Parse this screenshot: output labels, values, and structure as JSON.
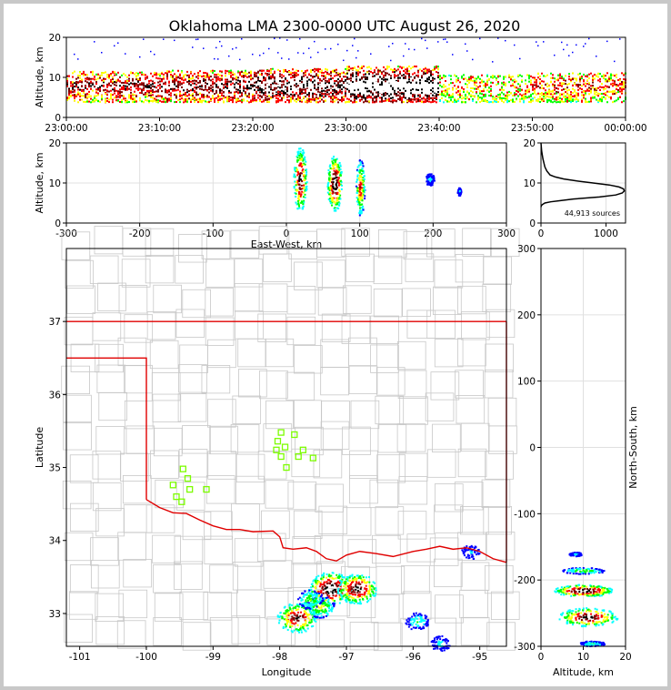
{
  "figure": {
    "title": "Oklahoma LMA 2300-0000 UTC August 26, 2020",
    "colors": {
      "axes": "#000000",
      "grid": "#e0e0e0",
      "county": "#c8c8c8",
      "state": "#e00000",
      "stations": "#7cfc00",
      "profile": "#000000"
    },
    "colormap": [
      "#0000ff",
      "#00ffff",
      "#00ff00",
      "#ffff00",
      "#ff0000",
      "#800000",
      "#000000",
      "#ffffff"
    ]
  },
  "chart_data": [
    {
      "type": "heatmap",
      "panel": "time-height",
      "xlabel": "",
      "ylabel": "Altitude, km",
      "xlim": [
        "23:00:00",
        "00:00:00"
      ],
      "ylim": [
        0,
        20
      ],
      "xticks": [
        "23:00:00",
        "23:10:00",
        "23:20:00",
        "23:30:00",
        "23:40:00",
        "23:50:00",
        "00:00:00"
      ],
      "yticks": [
        0,
        10,
        20
      ],
      "density_by_10min": [
        0.55,
        0.6,
        0.7,
        0.85,
        0.35,
        0.45
      ],
      "altitude_range_km": [
        4,
        16
      ]
    },
    {
      "type": "heatmap",
      "panel": "east-west-altitude",
      "xlabel": "East-West, km",
      "ylabel": "Altitude, km",
      "xlim": [
        -300,
        300
      ],
      "ylim": [
        0,
        20
      ],
      "xticks": [
        -300,
        -200,
        -100,
        0,
        100,
        200,
        300
      ],
      "yticks": [
        0,
        10,
        20
      ],
      "cells": [
        {
          "x": 18,
          "z": 11,
          "w": 18,
          "h": 16,
          "v": 0.9
        },
        {
          "x": 65,
          "z": 10,
          "w": 20,
          "h": 14,
          "v": 1.0
        },
        {
          "x": 100,
          "z": 9,
          "w": 12,
          "h": 14,
          "v": 0.7
        },
        {
          "x": 195,
          "z": 11,
          "w": 12,
          "h": 3,
          "v": 0.2
        },
        {
          "x": 235,
          "z": 8,
          "w": 5,
          "h": 2,
          "v": 0.2
        }
      ]
    },
    {
      "type": "line",
      "panel": "altitude-histogram",
      "xlim": [
        0,
        1300
      ],
      "ylim": [
        0,
        20
      ],
      "xticks": [
        0,
        1000
      ],
      "yticks": [
        0,
        10,
        20
      ],
      "annotation": "44,913 sources",
      "x": [
        0,
        5,
        20,
        60,
        150,
        300,
        500,
        900,
        1150,
        1250,
        1280,
        1270,
        1200,
        1050,
        800,
        550,
        350,
        220,
        140,
        90,
        60,
        30,
        10,
        0
      ],
      "y": [
        4,
        4.3,
        4.6,
        5,
        5.3,
        5.6,
        6,
        6.5,
        7,
        7.5,
        8,
        8.5,
        9,
        9.5,
        10,
        10.5,
        11,
        11.5,
        12,
        13,
        14,
        16,
        18,
        20
      ]
    },
    {
      "type": "heatmap",
      "panel": "plan-view-map",
      "xlabel": "Longitude",
      "ylabel": "Latitude",
      "xlim": [
        -101.2,
        -94.6
      ],
      "ylim": [
        32.55,
        38
      ],
      "xticks": [
        -101,
        -100,
        -99,
        -98,
        -97,
        -96,
        -95
      ],
      "yticks": [
        33,
        34,
        35,
        36,
        37
      ],
      "storms": [
        {
          "lon": -97.25,
          "lat": 33.35,
          "v": 1.0
        },
        {
          "lon": -96.85,
          "lat": 33.35,
          "v": 0.9
        },
        {
          "lon": -97.75,
          "lat": 32.95,
          "v": 0.85
        },
        {
          "lon": -97.4,
          "lat": 33.1,
          "v": 0.5
        },
        {
          "lon": -95.95,
          "lat": 32.9,
          "v": 0.3
        },
        {
          "lon": -95.6,
          "lat": 32.6,
          "v": 0.2
        },
        {
          "lon": -95.15,
          "lat": 33.85,
          "v": 0.15
        },
        {
          "lon": -97.55,
          "lat": 33.2,
          "v": 0.4
        }
      ],
      "stations": [
        {
          "lon": -97.98,
          "lat": 35.48
        },
        {
          "lon": -97.78,
          "lat": 35.45
        },
        {
          "lon": -98.03,
          "lat": 35.36
        },
        {
          "lon": -97.92,
          "lat": 35.28
        },
        {
          "lon": -98.05,
          "lat": 35.24
        },
        {
          "lon": -97.65,
          "lat": 35.24
        },
        {
          "lon": -97.98,
          "lat": 35.15
        },
        {
          "lon": -97.72,
          "lat": 35.15
        },
        {
          "lon": -97.5,
          "lat": 35.13
        },
        {
          "lon": -97.9,
          "lat": 35.0
        },
        {
          "lon": -99.45,
          "lat": 34.98
        },
        {
          "lon": -99.38,
          "lat": 34.85
        },
        {
          "lon": -99.6,
          "lat": 34.76
        },
        {
          "lon": -99.35,
          "lat": 34.7
        },
        {
          "lon": -99.1,
          "lat": 34.7
        },
        {
          "lon": -99.55,
          "lat": 34.6
        },
        {
          "lon": -99.47,
          "lat": 34.53
        }
      ],
      "border": {
        "kansas": [
          [
            -101.2,
            37
          ],
          [
            -94.6,
            37
          ]
        ],
        "panhandle": [
          [
            -101.2,
            36.5
          ],
          [
            -100,
            36.5
          ],
          [
            -100,
            34.56
          ]
        ],
        "red_river": [
          [
            -100,
            34.56
          ],
          [
            -99.8,
            34.45
          ],
          [
            -99.6,
            34.38
          ],
          [
            -99.4,
            34.37
          ],
          [
            -99.2,
            34.28
          ],
          [
            -99.0,
            34.2
          ],
          [
            -98.8,
            34.15
          ],
          [
            -98.6,
            34.15
          ],
          [
            -98.4,
            34.12
          ],
          [
            -98.1,
            34.13
          ],
          [
            -98.0,
            34.05
          ],
          [
            -97.95,
            33.9
          ],
          [
            -97.8,
            33.88
          ],
          [
            -97.6,
            33.9
          ],
          [
            -97.45,
            33.85
          ],
          [
            -97.3,
            33.75
          ],
          [
            -97.15,
            33.72
          ],
          [
            -97.0,
            33.8
          ],
          [
            -96.8,
            33.85
          ],
          [
            -96.55,
            33.82
          ],
          [
            -96.3,
            33.78
          ],
          [
            -96.0,
            33.85
          ],
          [
            -95.8,
            33.88
          ],
          [
            -95.6,
            33.92
          ],
          [
            -95.4,
            33.88
          ],
          [
            -95.2,
            33.9
          ],
          [
            -95.0,
            33.85
          ],
          [
            -94.8,
            33.75
          ],
          [
            -94.6,
            33.7
          ]
        ],
        "east": [
          [
            -94.6,
            37
          ],
          [
            -94.6,
            33.7
          ]
        ]
      }
    },
    {
      "type": "heatmap",
      "panel": "altitude-north-south",
      "xlabel": "Altitude, km",
      "ylabel": "North-South, km",
      "xlim": [
        0,
        20
      ],
      "ylim": [
        -300,
        300
      ],
      "xticks": [
        0,
        10,
        20
      ],
      "yticks": [
        -300,
        -200,
        -100,
        0,
        100,
        200,
        300
      ],
      "cells": [
        {
          "z": 10,
          "y": -215,
          "w": 14,
          "h": 18,
          "v": 1.0
        },
        {
          "z": 11,
          "y": -255,
          "w": 14,
          "h": 28,
          "v": 0.9
        },
        {
          "z": 10,
          "y": -185,
          "w": 10,
          "h": 10,
          "v": 0.4
        },
        {
          "z": 8,
          "y": -160,
          "w": 3,
          "h": 6,
          "v": 0.2
        },
        {
          "z": 12,
          "y": -295,
          "w": 6,
          "h": 8,
          "v": 0.3
        }
      ]
    }
  ]
}
